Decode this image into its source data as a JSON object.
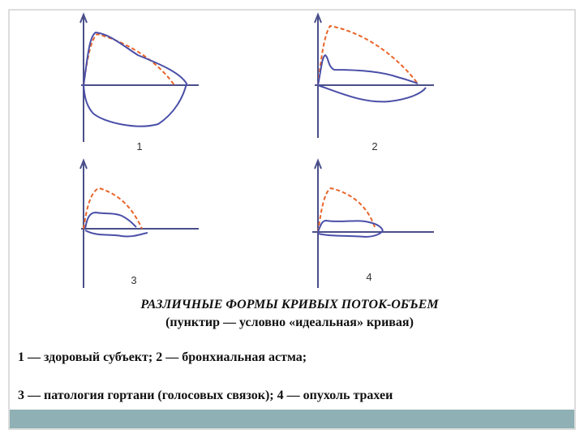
{
  "panels": [
    {
      "label": "1"
    },
    {
      "label": "2"
    },
    {
      "label": "3"
    },
    {
      "label": "4"
    }
  ],
  "caption": {
    "title": "РАЗЛИЧНЫЕ ФОРМЫ КРИВЫХ ПОТОК-ОБЪЕМ",
    "subtitle": "(пунктир — условно «идеальная» кривая)"
  },
  "legend": [
    "1 — здоровый субъект; 2 — бронхиальная астма;",
    "3 — патология гортани (голосовых связок); 4 — опухоль трахеи"
  ]
}
